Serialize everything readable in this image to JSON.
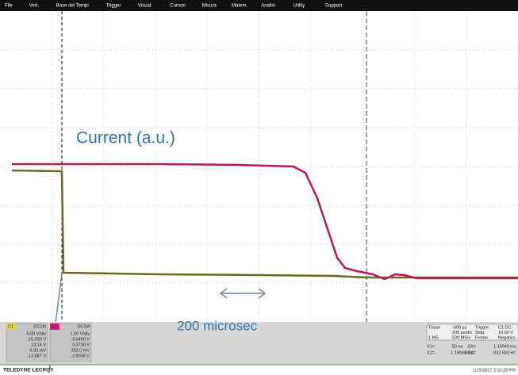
{
  "menu": {
    "items": [
      "File",
      "Vert.",
      "Base dei Tempi",
      "Trigger",
      "Visual.",
      "Cursori",
      "Misura",
      "Matem.",
      "Analisi",
      "Utility",
      "Support"
    ]
  },
  "annotations": {
    "signal": "Current (a.u.)",
    "timescale": "200 microsec"
  },
  "channels": [
    {
      "label": "C1",
      "coupling": "DC1M",
      "rows": [
        "5.00 V/div",
        "-15.000 V",
        "14.14 V",
        "6.33 mV",
        "-13.887 V"
      ]
    },
    {
      "label": "C2",
      "coupling": "DC1M",
      "rows": [
        "1.00 V/div",
        "-3.0400 V",
        "3.3738 V",
        "332.0 mV",
        "-2.9038 V"
      ]
    }
  ],
  "timebase": {
    "rows": [
      [
        "Tbase",
        "-600 µs",
        "Trigger",
        "C1 DC"
      ],
      [
        "",
        "200 µs/div",
        "Stop",
        "10.00 V"
      ],
      [
        "1 MS",
        "500 MS/s",
        "Fronte",
        "Negativo"
      ]
    ]
  },
  "cursors": {
    "rows": [
      [
        "X1=",
        "-50 ns",
        "ΔX=",
        "1.19949 ms"
      ],
      [
        "X2=",
        "1.19944 ms",
        "1/ΔX=",
        "833.683 Hz"
      ]
    ]
  },
  "footer": {
    "brand": "TELEDYNE LECROY",
    "timestamp": "1/19/2017 3:10:28 PM"
  }
}
